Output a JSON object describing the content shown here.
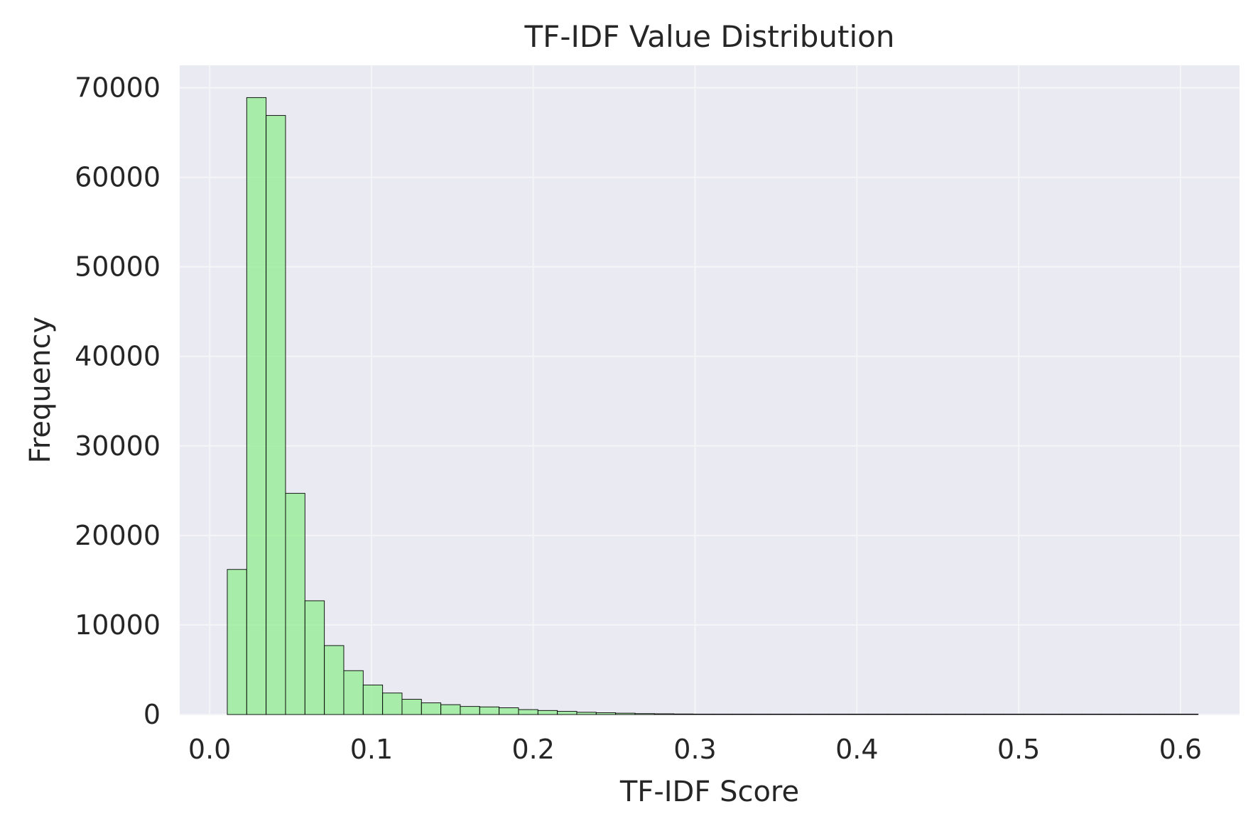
{
  "chart_data": {
    "type": "bar",
    "subtype": "histogram",
    "title": "TF-IDF Value Distribution",
    "xlabel": "TF-IDF Score",
    "ylabel": "Frequency",
    "xlim": [
      -0.0185,
      0.6365
    ],
    "ylim": [
      0,
      72500
    ],
    "xticks": [
      0.0,
      0.1,
      0.2,
      0.3,
      0.4,
      0.5,
      0.6
    ],
    "xtick_labels": [
      "0.0",
      "0.1",
      "0.2",
      "0.3",
      "0.4",
      "0.5",
      "0.6"
    ],
    "yticks": [
      0,
      10000,
      20000,
      30000,
      40000,
      50000,
      60000,
      70000
    ],
    "ytick_labels": [
      "0",
      "10000",
      "20000",
      "30000",
      "40000",
      "50000",
      "60000",
      "70000"
    ],
    "grid": true,
    "bin_start": 0.0109,
    "bin_width": 0.012,
    "values": [
      16200,
      68900,
      66900,
      24700,
      12700,
      7700,
      4900,
      3300,
      2400,
      1700,
      1300,
      1100,
      900,
      850,
      750,
      550,
      450,
      350,
      250,
      200,
      150,
      100,
      80,
      60,
      40,
      30,
      20,
      10,
      8,
      6,
      5,
      4,
      3,
      3,
      2,
      2,
      2,
      1,
      1,
      1,
      1,
      1,
      1,
      1,
      1,
      1,
      1,
      1,
      1,
      1
    ],
    "colors": {
      "bar_fill": "#90ee90",
      "bar_edge": "#000000",
      "plot_background": "#eaeaf2",
      "grid": "#f5f5f8",
      "text": "#262626"
    }
  }
}
